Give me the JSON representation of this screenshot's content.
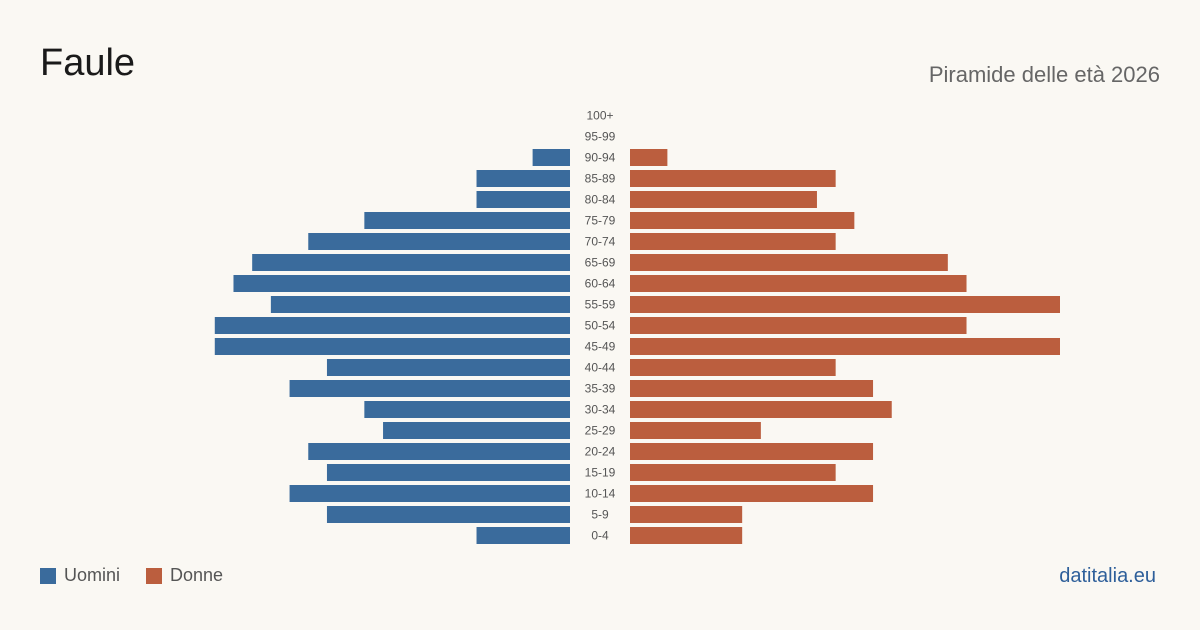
{
  "header": {
    "title": "Faule",
    "subtitle": "Piramide delle età 2026"
  },
  "legend": [
    {
      "label": "Uomini",
      "color": "#3a6b9c"
    },
    {
      "label": "Donne",
      "color": "#bb5e3e"
    }
  ],
  "brand": "datitalia.eu",
  "chart_data": {
    "type": "bar",
    "orientation": "horizontal-pyramid",
    "categories": [
      "100+",
      "95-99",
      "90-94",
      "85-89",
      "80-84",
      "75-79",
      "70-74",
      "65-69",
      "60-64",
      "55-59",
      "50-54",
      "45-49",
      "40-44",
      "35-39",
      "30-34",
      "25-29",
      "20-24",
      "15-19",
      "10-14",
      "5-9",
      "0-4"
    ],
    "series": [
      {
        "name": "Uomini",
        "color": "#3a6b9c",
        "values": [
          0,
          0,
          2,
          5,
          5,
          11,
          14,
          17,
          18,
          16,
          19,
          19,
          13,
          15,
          11,
          10,
          14,
          13,
          15,
          13,
          5
        ]
      },
      {
        "name": "Donne",
        "color": "#bb5e3e",
        "values": [
          0,
          0,
          2,
          11,
          10,
          12,
          11,
          17,
          18,
          23,
          18,
          23,
          11,
          13,
          14,
          7,
          13,
          11,
          13,
          6,
          6
        ]
      }
    ]
  }
}
